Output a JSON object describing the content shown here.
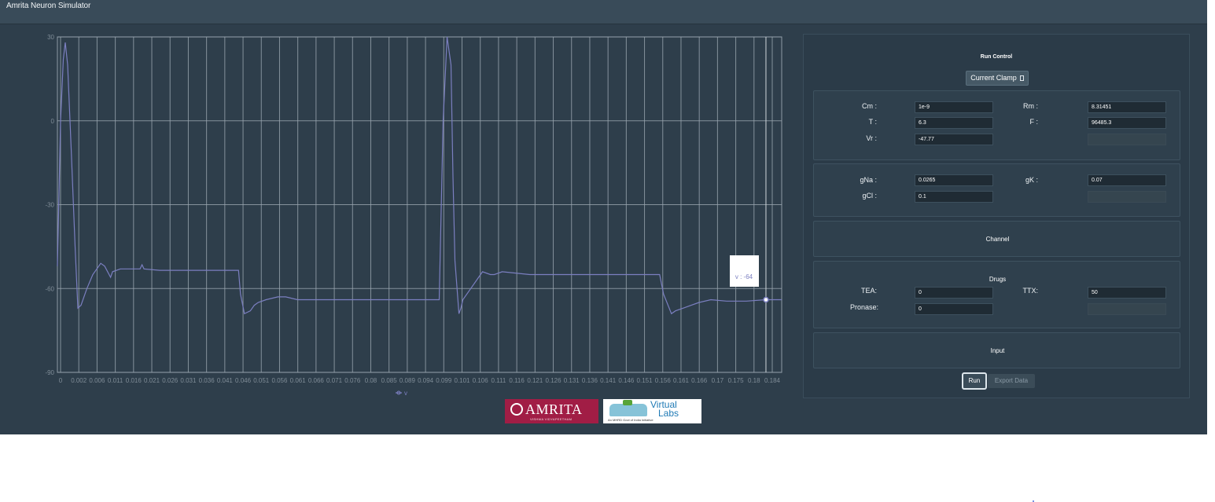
{
  "window": {
    "title": "Amrita Neuron Simulator"
  },
  "chart_data": {
    "type": "line",
    "title": "",
    "xlabel": "",
    "ylabel": "",
    "xlim": [
      0,
      0.184
    ],
    "ylim": [
      -90,
      30
    ],
    "y_ticks": [
      "30",
      "0",
      "-30",
      "-60",
      "-90"
    ],
    "y_tick_values": [
      30,
      0,
      -30,
      -60,
      -90
    ],
    "x_ticks": [
      "0",
      "0.002",
      "0.006",
      "0.011",
      "0.016",
      "0.021",
      "0.026",
      "0.031",
      "0.036",
      "0.041",
      "0.046",
      "0.051",
      "0.056",
      "0.061",
      "0.066",
      "0.071",
      "0.076",
      "0.08",
      "0.085",
      "0.089",
      "0.094",
      "0.099",
      "0.101",
      "0.106",
      "0.111",
      "0.116",
      "0.121",
      "0.126",
      "0.131",
      "0.136",
      "0.141",
      "0.146",
      "0.151",
      "0.156",
      "0.161",
      "0.166",
      "0.17",
      "0.175",
      "0.18",
      "0.184"
    ],
    "legend": {
      "placement": "bottom",
      "entries": [
        "v"
      ]
    },
    "grid": true,
    "series": [
      {
        "name": "v",
        "color": "#7b7fc0",
        "x": [
          0,
          0.0008,
          0.0015,
          0.002,
          0.0026,
          0.0035,
          0.0045,
          0.0052,
          0.006,
          0.0075,
          0.009,
          0.01,
          0.011,
          0.012,
          0.0135,
          0.014,
          0.016,
          0.021,
          0.0215,
          0.022,
          0.026,
          0.035,
          0.046,
          0.0465,
          0.0475,
          0.049,
          0.05,
          0.051,
          0.053,
          0.056,
          0.058,
          0.061,
          0.07,
          0.08,
          0.094,
          0.097,
          0.098,
          0.099,
          0.1,
          0.1005,
          0.101,
          0.102,
          0.1025,
          0.103,
          0.105,
          0.107,
          0.108,
          0.11,
          0.111,
          0.113,
          0.12,
          0.13,
          0.15,
          0.153,
          0.154,
          0.156,
          0.157,
          0.159,
          0.161,
          0.163,
          0.166,
          0.17,
          0.175,
          0.18,
          0.184
        ],
        "y": [
          -52,
          0,
          22,
          28,
          20,
          -10,
          -45,
          -67,
          -66,
          -60,
          -55,
          -53,
          -51,
          -52,
          -56,
          -54,
          -53,
          -53,
          -51.5,
          -53,
          -53.5,
          -53.5,
          -53.5,
          -62,
          -69,
          -68,
          -66,
          -65,
          -64,
          -63,
          -63,
          -64,
          -64,
          -64,
          -64,
          -64,
          0,
          30,
          20,
          -20,
          -50,
          -69,
          -67,
          -64,
          -60,
          -56,
          -54,
          -55,
          -55,
          -54,
          -55,
          -55,
          -55,
          -55,
          -62,
          -69,
          -68,
          -67,
          -66,
          -65,
          -64,
          -64.5,
          -64.5,
          -64,
          -64
        ]
      }
    ],
    "tooltip": {
      "text": "v : -64",
      "x": 0.18,
      "y": -64
    }
  },
  "logos": {
    "amrita_main": "AMRITA",
    "amrita_sub": "VISHWA VIDYAPEETHAM",
    "vlabs_line1": "Virtual",
    "vlabs_line2": "Labs",
    "vlabs_tag": "An MHRD Govt of India Initiative"
  },
  "panel": {
    "title": "Run Control",
    "clamp_label": "Current Clamp",
    "constants": {
      "cm_label": "Cm :",
      "cm_value": "1e-9",
      "rm_label": "Rm :",
      "rm_value": "8.31451",
      "t_label": "T :",
      "t_value": "6.3",
      "f_label": "F :",
      "f_value": "96485.3",
      "vr_label": "Vr :",
      "vr_value": "-47.77"
    },
    "conductances": {
      "gna_label": "gNa :",
      "gna_value": "0.0265",
      "gk_label": "gK :",
      "gk_value": "0.07",
      "gcl_label": "gCl :",
      "gcl_value": "0.1"
    },
    "channel_label": "Channel",
    "drugs": {
      "label": "Drugs",
      "tea_label": "TEA:",
      "tea_value": "0",
      "ttx_label": "TTX:",
      "ttx_value": "50",
      "pronase_label": "Pronase:",
      "pronase_value": "0"
    },
    "input_label": "Input",
    "run_label": "Run",
    "export_label": "Export Data"
  }
}
